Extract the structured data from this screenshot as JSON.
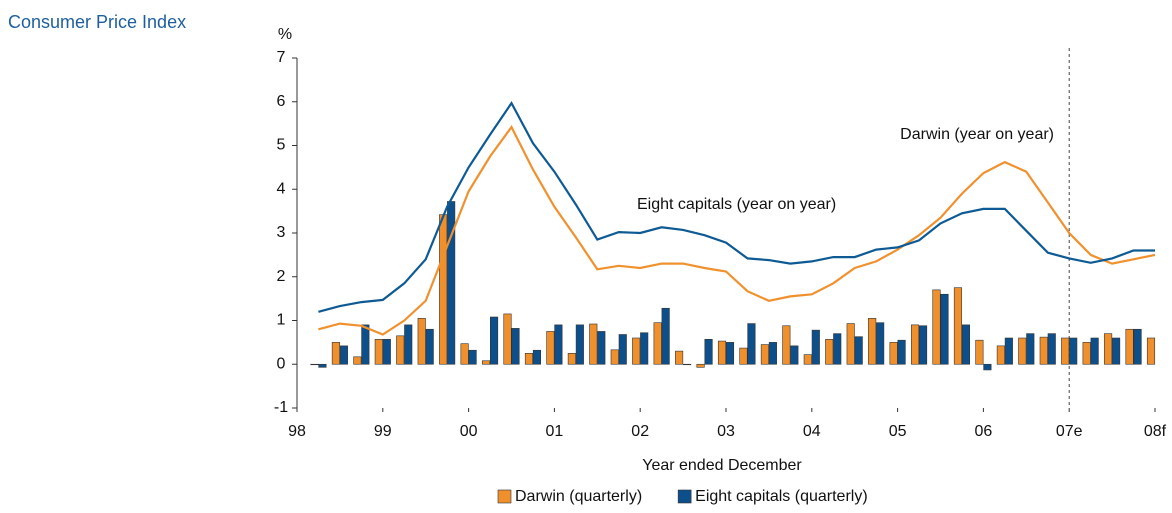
{
  "chart_data": {
    "type": "combo",
    "title": "Consumer Price Index",
    "y_unit": "%",
    "x_label": "Year ended December",
    "x": [
      1998.25,
      1998.5,
      1998.75,
      1999,
      1999.25,
      1999.5,
      1999.75,
      2000,
      2000.25,
      2000.5,
      2000.75,
      2001,
      2001.25,
      2001.5,
      2001.75,
      2002,
      2002.25,
      2002.5,
      2002.75,
      2003,
      2003.25,
      2003.5,
      2003.75,
      2004,
      2004.25,
      2004.5,
      2004.75,
      2005,
      2005.25,
      2005.5,
      2005.75,
      2006,
      2006.25,
      2006.5,
      2006.75,
      2007,
      2007.25,
      2007.5,
      2007.75,
      2008
    ],
    "xlim": [
      1998,
      2008
    ],
    "xticks": [
      {
        "value": 1998,
        "label": "98"
      },
      {
        "value": 1999,
        "label": "99"
      },
      {
        "value": 2000,
        "label": "00"
      },
      {
        "value": 2001,
        "label": "01"
      },
      {
        "value": 2002,
        "label": "02"
      },
      {
        "value": 2003,
        "label": "03"
      },
      {
        "value": 2004,
        "label": "04"
      },
      {
        "value": 2005,
        "label": "05"
      },
      {
        "value": 2006,
        "label": "06"
      },
      {
        "value": 2007,
        "label": "07e"
      },
      {
        "value": 2008,
        "label": "08f"
      }
    ],
    "ylim": [
      -1,
      7
    ],
    "yticks": [
      -1,
      0,
      1,
      2,
      3,
      4,
      5,
      6,
      7
    ],
    "forecast_line": 2007,
    "series": [
      {
        "name": "Darwin (quarterly)",
        "type": "bar",
        "color": "#f0902c",
        "values": [
          0,
          0.5,
          0.17,
          0.57,
          0.65,
          1.05,
          3.42,
          0.47,
          0.08,
          1.15,
          0.25,
          0.75,
          0.25,
          0.92,
          0.33,
          0.6,
          0.95,
          0.3,
          -0.07,
          0.53,
          0.37,
          0.45,
          0.88,
          0.22,
          0.57,
          0.93,
          1.05,
          0.5,
          0.9,
          1.7,
          1.75,
          0.55,
          0.42,
          0.6,
          0.62,
          0.6,
          0.5,
          0.7,
          0.8,
          0.6
        ]
      },
      {
        "name": "Eight capitals (quarterly)",
        "type": "bar",
        "color": "#0d4f8b",
        "values": [
          -0.07,
          0.42,
          0.9,
          0.57,
          0.9,
          0.8,
          3.72,
          0.32,
          1.08,
          0.82,
          0.32,
          0.9,
          0.9,
          0.75,
          0.68,
          0.72,
          1.28,
          0,
          0.57,
          0.5,
          0.93,
          0.5,
          0.42,
          0.78,
          0.7,
          0.63,
          0.95,
          0.55,
          0.88,
          1.6,
          0.9,
          -0.13,
          0.6,
          0.7,
          0.7,
          0.6,
          0.6,
          0.6,
          0.8,
          null
        ]
      },
      {
        "name": "Darwin (year on year)",
        "type": "line",
        "color": "#f0912e",
        "values": [
          0.8,
          0.93,
          0.88,
          0.68,
          1.0,
          1.45,
          2.7,
          3.95,
          4.75,
          5.42,
          4.45,
          3.6,
          2.9,
          2.17,
          2.25,
          2.2,
          2.3,
          2.3,
          2.2,
          2.12,
          1.67,
          1.45,
          1.55,
          1.6,
          1.85,
          2.2,
          2.35,
          2.62,
          2.95,
          3.35,
          3.9,
          4.37,
          4.62,
          4.4,
          3.7,
          3.0,
          2.5,
          2.3,
          2.4,
          2.5
        ]
      },
      {
        "name": "Eight capitals (year on year)",
        "type": "line",
        "color": "#0e5a95",
        "values": [
          1.2,
          1.33,
          1.42,
          1.47,
          1.85,
          2.4,
          3.6,
          4.5,
          5.25,
          5.97,
          5.05,
          4.4,
          3.65,
          2.85,
          3.02,
          3.0,
          3.13,
          3.07,
          2.95,
          2.78,
          2.42,
          2.38,
          2.3,
          2.35,
          2.45,
          2.45,
          2.62,
          2.67,
          2.83,
          3.22,
          3.45,
          3.55,
          3.55,
          3.05,
          2.55,
          2.42,
          2.32,
          2.42,
          2.6,
          2.6
        ]
      }
    ]
  }
}
